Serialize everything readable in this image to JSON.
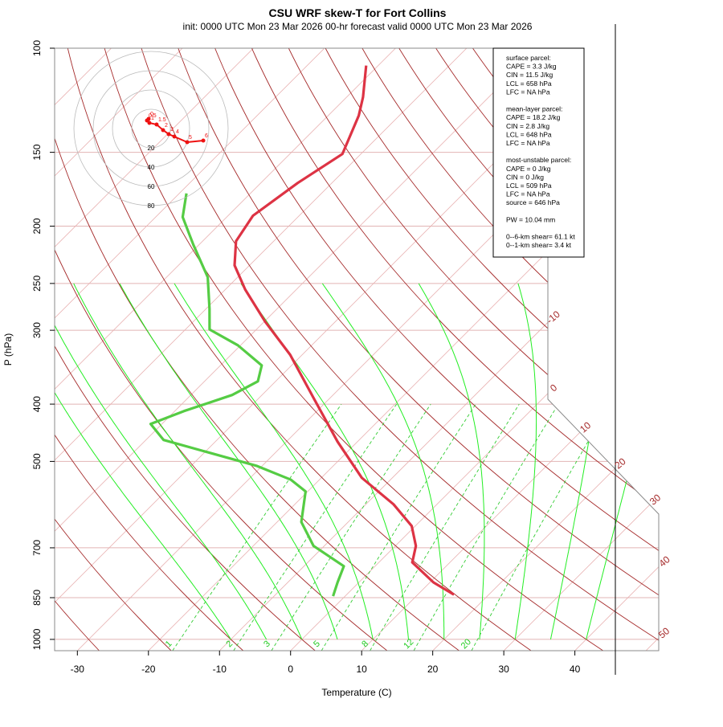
{
  "chart_data": {
    "type": "skewt",
    "title": "CSU WRF skew-T for Fort Collins",
    "subtitle": "init: 0000 UTC Mon 23 Mar 2026     00-hr forecast valid 0000 UTC Mon 23 Mar 2026",
    "x_label": "Temperature (C)",
    "y_label": "P (hPa)",
    "xlim": [
      -33.2,
      51.8
    ],
    "ylim": [
      1045,
      100
    ],
    "log_y": true,
    "xticks": [
      -30,
      -20,
      -10,
      0,
      10,
      20,
      30,
      40
    ],
    "yticks": [
      100,
      150,
      200,
      250,
      300,
      400,
      500,
      700,
      850,
      1000
    ],
    "isotherms": [
      -110,
      -100,
      -90,
      -80,
      -70,
      -60,
      -50,
      -40,
      -30,
      -20,
      -10,
      0,
      10,
      20,
      30,
      40,
      50
    ],
    "isotherm_labels": [
      -10,
      0,
      10,
      20,
      30,
      40,
      50
    ],
    "dry_adiabats": [
      -40,
      -30,
      -20,
      -10,
      0,
      10,
      20,
      30,
      40,
      50,
      60,
      70,
      80,
      90,
      100,
      110,
      120,
      130,
      140,
      150,
      160,
      170,
      180
    ],
    "moist_adiabats": [
      -10,
      -5,
      0,
      5,
      10,
      15,
      20,
      25,
      30,
      35,
      40
    ],
    "mixing_ratios": [
      1,
      2,
      3,
      5,
      8,
      12,
      20
    ],
    "series": [
      {
        "color": "#dd3344",
        "y": [
          107,
          121,
          130,
          151,
          169,
          192,
          212,
          233,
          256,
          290,
          330,
          390,
          463,
          533,
          591,
          643,
          695,
          741,
          801,
          840
        ],
        "x": [
          -71.7,
          -67.7,
          -65.7,
          -62.6,
          -64.8,
          -66.5,
          -65.3,
          -62.1,
          -57.2,
          -49.9,
          -41.7,
          -32.4,
          -22.8,
          -14.3,
          -6.1,
          -0.5,
          2.9,
          4.7,
          10.5,
          15.1
        ]
      },
      {
        "color": "#55cc44",
        "y": [
          176,
          193,
          215,
          244,
          276,
          299,
          318,
          344,
          366,
          386,
          411,
          432,
          460,
          509,
          537,
          562,
          633,
          695,
          752,
          801,
          845
        ],
        "x": [
          -79.0,
          -76.2,
          -70.8,
          -64.2,
          -59.5,
          -56.6,
          -50.4,
          -44.2,
          -42.5,
          -44.2,
          -48.7,
          -51.6,
          -47.5,
          -30.7,
          -24.0,
          -20.3,
          -16.6,
          -11.5,
          -4.4,
          -3.0,
          -1.7
        ]
      }
    ],
    "hodograph": {
      "rings": [
        20,
        40,
        60,
        80
      ],
      "color": "#ee1111",
      "labels": [
        "0",
        "0.5",
        "1",
        "1.5",
        "2",
        "3",
        "4",
        "5",
        "6"
      ],
      "u": [
        -2.5,
        -4.2,
        -1.7,
        5.8,
        12.5,
        18.3,
        24.2,
        37.5,
        54.2
      ],
      "v": [
        10,
        8.3,
        5.8,
        4.2,
        -1.7,
        -5.8,
        -8.3,
        -14.2,
        -12.5
      ]
    },
    "info_box": [
      [
        "surface parcel:",
        "CAPE = 3.3 J/kg",
        "CIN = 11.5 J/kg",
        "LCL = 658 hPa",
        "LFC = NA hPa"
      ],
      [
        "mean-layer parcel:",
        "CAPE = 18.2 J/kg",
        "CIN = 2.8 J/kg",
        "LCL = 648 hPa",
        "LFC = NA hPa"
      ],
      [
        "most-unstable parcel:",
        "CAPE = 0 J/kg",
        "CIN = 0 J/kg",
        "LCL = 509 hPa",
        "LFC = NA hPa",
        "source = 646 hPa"
      ],
      [
        "PW =  10.04 mm"
      ],
      [
        "0--6-km shear= 61.1 kt",
        "0--1-km shear= 3.4 kt"
      ]
    ]
  }
}
